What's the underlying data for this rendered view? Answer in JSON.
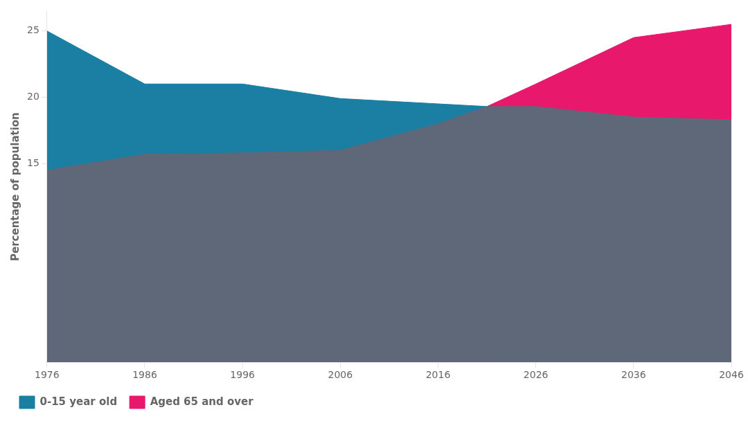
{
  "chart_data": {
    "type": "area",
    "x": [
      1976,
      1986,
      1996,
      2006,
      2016,
      2021,
      2026,
      2036,
      2046
    ],
    "series": [
      {
        "name": "0-15 year old",
        "color": "#1b7fa3",
        "values": [
          25.0,
          21.0,
          21.0,
          19.9,
          19.5,
          19.3,
          null,
          null,
          null
        ]
      },
      {
        "name": "Aged 65 and over",
        "color": "#e8186d",
        "values": [
          null,
          null,
          null,
          null,
          null,
          19.3,
          21.0,
          24.5,
          25.5
        ]
      },
      {
        "color": "#5f6878",
        "values": [
          14.5,
          15.7,
          15.8,
          16.0,
          18.0,
          19.3,
          19.3,
          18.5,
          18.3
        ]
      }
    ],
    "ylabel": "Percentage of population",
    "xlim": [
      1976,
      2046
    ],
    "ylim": [
      0,
      26.5
    ],
    "xticks": [
      1976,
      1986,
      1996,
      2006,
      2016,
      2026,
      2036,
      2046
    ],
    "yticks": [
      15,
      20,
      25
    ],
    "grid": false,
    "legend": "bottom"
  }
}
